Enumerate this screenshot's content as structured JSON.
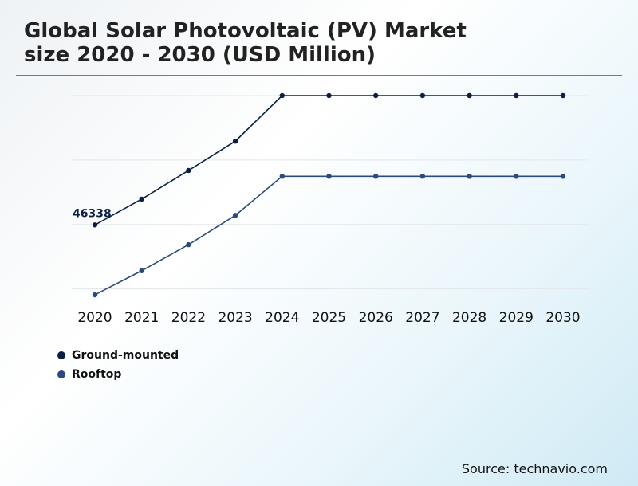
{
  "chart_data": {
    "type": "line",
    "title_lines": [
      "Global Solar Photovoltaic (PV) Market",
      "size 2020 - 2030 (USD Million)"
    ],
    "categories": [
      "2020",
      "2021",
      "2022",
      "2023",
      "2024",
      "2025",
      "2026",
      "2027",
      "2028",
      "2029",
      "2030"
    ],
    "series": [
      {
        "name": "Ground-mounted",
        "color": "#0b1f45",
        "values": [
          46338,
          50300,
          54700,
          59200,
          66200,
          66200,
          66200,
          66200,
          66200,
          66200,
          66200
        ]
      },
      {
        "name": "Rooftop",
        "color": "#2c4a7c",
        "values": [
          35600,
          39300,
          43300,
          47800,
          53800,
          53800,
          53800,
          53800,
          53800,
          53800,
          53800
        ]
      }
    ],
    "data_labels": [
      {
        "series": 0,
        "index": 0,
        "text": "46338"
      }
    ],
    "ylim": [
      35600,
      66200
    ],
    "gridlines": [
      66200,
      56300,
      46400,
      36500
    ],
    "grid_color": "#e2e6ea",
    "yticks_shown": false
  },
  "source": "Source: technavio.com"
}
